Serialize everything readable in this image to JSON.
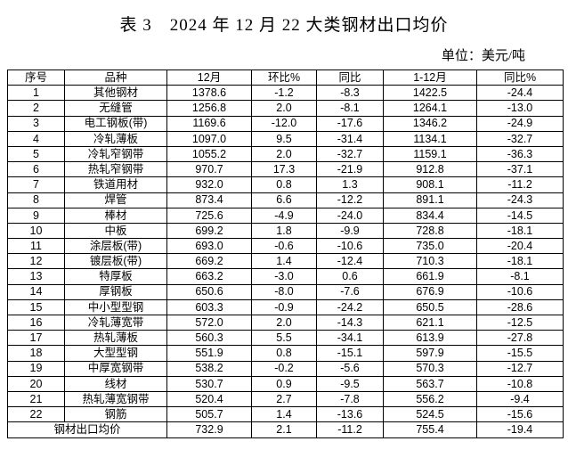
{
  "page": {
    "title": "表 3　2024 年 12 月 22 大类钢材出口均价",
    "unit_label": "单位：美元/吨"
  },
  "table": {
    "columns": [
      "序号",
      "品种",
      "12月",
      "环比%",
      "同比",
      "1-12月",
      "同比%"
    ],
    "column_keys": [
      "no",
      "name",
      "dec",
      "mom",
      "yoy",
      "jan_dec",
      "yoy_cum"
    ],
    "rows": [
      {
        "no": "1",
        "name": "其他钢材",
        "dec": "1378.6",
        "mom": "-1.2",
        "yoy": "-8.3",
        "jan_dec": "1422.5",
        "yoy_cum": "-24.4"
      },
      {
        "no": "2",
        "name": "无缝管",
        "dec": "1256.8",
        "mom": "2.0",
        "yoy": "-8.1",
        "jan_dec": "1264.1",
        "yoy_cum": "-13.0"
      },
      {
        "no": "3",
        "name": "电工钢板(带)",
        "dec": "1169.6",
        "mom": "-12.0",
        "yoy": "-17.6",
        "jan_dec": "1346.2",
        "yoy_cum": "-24.9"
      },
      {
        "no": "4",
        "name": "冷轧薄板",
        "dec": "1097.0",
        "mom": "9.5",
        "yoy": "-31.4",
        "jan_dec": "1134.1",
        "yoy_cum": "-32.7"
      },
      {
        "no": "5",
        "name": "冷轧窄钢带",
        "dec": "1055.2",
        "mom": "2.0",
        "yoy": "-32.7",
        "jan_dec": "1159.1",
        "yoy_cum": "-36.3"
      },
      {
        "no": "6",
        "name": "热轧窄钢带",
        "dec": "970.7",
        "mom": "17.3",
        "yoy": "-21.9",
        "jan_dec": "912.8",
        "yoy_cum": "-37.1"
      },
      {
        "no": "7",
        "name": "铁道用材",
        "dec": "932.0",
        "mom": "0.8",
        "yoy": "1.3",
        "jan_dec": "908.1",
        "yoy_cum": "-11.2"
      },
      {
        "no": "8",
        "name": "焊管",
        "dec": "873.4",
        "mom": "6.6",
        "yoy": "-12.2",
        "jan_dec": "891.1",
        "yoy_cum": "-24.3"
      },
      {
        "no": "9",
        "name": "棒材",
        "dec": "725.6",
        "mom": "-4.9",
        "yoy": "-24.0",
        "jan_dec": "834.4",
        "yoy_cum": "-14.5"
      },
      {
        "no": "10",
        "name": "中板",
        "dec": "699.2",
        "mom": "1.8",
        "yoy": "-9.9",
        "jan_dec": "728.8",
        "yoy_cum": "-18.1"
      },
      {
        "no": "11",
        "name": "涂层板(带)",
        "dec": "693.0",
        "mom": "-0.6",
        "yoy": "-10.6",
        "jan_dec": "735.0",
        "yoy_cum": "-20.4"
      },
      {
        "no": "12",
        "name": "镀层板(带)",
        "dec": "669.2",
        "mom": "1.4",
        "yoy": "-12.4",
        "jan_dec": "710.3",
        "yoy_cum": "-18.1"
      },
      {
        "no": "13",
        "name": "特厚板",
        "dec": "663.2",
        "mom": "-3.0",
        "yoy": "0.6",
        "jan_dec": "661.9",
        "yoy_cum": "-8.1"
      },
      {
        "no": "14",
        "name": "厚钢板",
        "dec": "650.6",
        "mom": "-8.0",
        "yoy": "-7.6",
        "jan_dec": "676.9",
        "yoy_cum": "-10.6"
      },
      {
        "no": "15",
        "name": "中小型型钢",
        "dec": "603.3",
        "mom": "-0.9",
        "yoy": "-24.2",
        "jan_dec": "650.5",
        "yoy_cum": "-28.6"
      },
      {
        "no": "16",
        "name": "冷轧薄宽带",
        "dec": "572.0",
        "mom": "2.0",
        "yoy": "-14.3",
        "jan_dec": "621.1",
        "yoy_cum": "-12.5"
      },
      {
        "no": "17",
        "name": "热轧薄板",
        "dec": "560.3",
        "mom": "5.5",
        "yoy": "-34.1",
        "jan_dec": "613.9",
        "yoy_cum": "-27.8"
      },
      {
        "no": "18",
        "name": "大型型钢",
        "dec": "551.9",
        "mom": "0.8",
        "yoy": "-15.1",
        "jan_dec": "597.9",
        "yoy_cum": "-15.5"
      },
      {
        "no": "19",
        "name": "中厚宽钢带",
        "dec": "538.2",
        "mom": "-0.2",
        "yoy": "-5.6",
        "jan_dec": "570.3",
        "yoy_cum": "-12.7"
      },
      {
        "no": "20",
        "name": "线材",
        "dec": "530.7",
        "mom": "0.9",
        "yoy": "-9.5",
        "jan_dec": "563.7",
        "yoy_cum": "-10.8"
      },
      {
        "no": "21",
        "name": "热轧薄宽钢带",
        "dec": "520.4",
        "mom": "2.7",
        "yoy": "-7.8",
        "jan_dec": "556.2",
        "yoy_cum": "-9.4"
      },
      {
        "no": "22",
        "name": "钢筋",
        "dec": "505.7",
        "mom": "1.4",
        "yoy": "-13.6",
        "jan_dec": "524.5",
        "yoy_cum": "-15.6"
      }
    ],
    "summary": {
      "label": "钢材出口均价",
      "dec": "732.9",
      "mom": "2.1",
      "yoy": "-11.2",
      "jan_dec": "755.4",
      "yoy_cum": "-19.4"
    }
  }
}
